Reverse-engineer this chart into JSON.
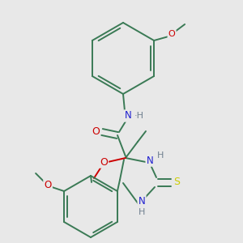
{
  "background_color": "#e8e8e8",
  "bond_color": "#3a7a55",
  "atom_colors": {
    "N": "#2020d0",
    "O": "#cc0000",
    "S": "#cccc00",
    "C": "#3a7a55",
    "H": "#708090"
  },
  "figsize": [
    3.0,
    3.0
  ],
  "dpi": 100
}
